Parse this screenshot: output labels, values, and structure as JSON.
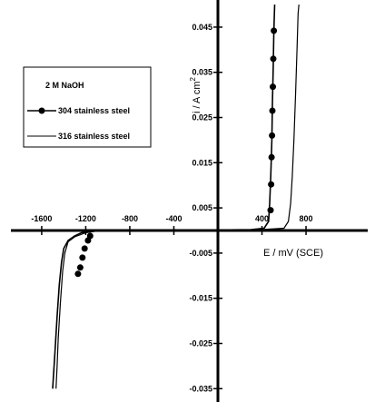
{
  "chart_data": {
    "type": "line",
    "title": "",
    "xlabel": "E / mV (SCE)",
    "ylabel": "i / A cm",
    "ylabel_sup": "2",
    "xlim": [
      -1800,
      1300
    ],
    "ylim": [
      -0.0365,
      0.05
    ],
    "x_ticks": [
      -1600,
      -1200,
      -800,
      -400,
      400,
      800
    ],
    "x_tick_labels": [
      "-1600",
      "-1200",
      "-800",
      "-400",
      "400",
      "800"
    ],
    "y_ticks": [
      0.045,
      0.035,
      0.025,
      0.015,
      0.005,
      -0.005,
      -0.015,
      -0.025,
      -0.035
    ],
    "y_tick_labels": [
      "0.045",
      "0.035",
      "0.025",
      "0.015",
      "0.005",
      "-0.005",
      "-0.015",
      "-0.025",
      "-0.035"
    ],
    "grid": false,
    "legend": {
      "placement": "upper-left",
      "title": "2 M NaOH",
      "entries": [
        "304 stainless steel",
        "316 stainless steel"
      ]
    },
    "series": [
      {
        "name": "304 stainless steel",
        "marker": "circle",
        "color": "#000000",
        "points": [
          [
            -1500,
            -0.035
          ],
          [
            -1480,
            -0.027
          ],
          [
            -1460,
            -0.019
          ],
          [
            -1440,
            -0.012
          ],
          [
            -1420,
            -0.007
          ],
          [
            -1400,
            -0.004
          ],
          [
            -1360,
            -0.0022
          ],
          [
            -1300,
            -0.0012
          ],
          [
            -1240,
            -0.0005
          ],
          [
            -1100,
            -0.0001
          ],
          [
            0,
            0.0001
          ],
          [
            300,
            0.0002
          ],
          [
            420,
            0.0005
          ],
          [
            460,
            0.002
          ],
          [
            470,
            0.006
          ],
          [
            480,
            0.012
          ],
          [
            490,
            0.02
          ],
          [
            495,
            0.028
          ],
          [
            502,
            0.036
          ],
          [
            508,
            0.044
          ],
          [
            515,
            0.05
          ]
        ],
        "marker_points": [
          [
            -1270,
            -0.0096
          ],
          [
            -1250,
            -0.0082
          ],
          [
            -1230,
            -0.006
          ],
          [
            -1210,
            -0.004
          ],
          [
            -1180,
            -0.0022
          ],
          [
            -1160,
            -0.0012
          ],
          [
            478,
            0.0045
          ],
          [
            483,
            0.0102
          ],
          [
            487,
            0.0162
          ],
          [
            491,
            0.021
          ],
          [
            495,
            0.0265
          ],
          [
            499,
            0.0318
          ],
          [
            503,
            0.038
          ],
          [
            508,
            0.0442
          ]
        ]
      },
      {
        "name": "316 stainless steel",
        "marker": "none",
        "color": "#000000",
        "points": [
          [
            -1470,
            -0.035
          ],
          [
            -1460,
            -0.03
          ],
          [
            -1450,
            -0.024
          ],
          [
            -1430,
            -0.016
          ],
          [
            -1410,
            -0.009
          ],
          [
            -1390,
            -0.005
          ],
          [
            -1360,
            -0.0025
          ],
          [
            -1300,
            -0.0014
          ],
          [
            -1200,
            -0.0005
          ],
          [
            -1100,
            -0.0001
          ],
          [
            0,
            0.0001
          ],
          [
            400,
            0.0002
          ],
          [
            600,
            0.0005
          ],
          [
            640,
            0.002
          ],
          [
            660,
            0.006
          ],
          [
            675,
            0.012
          ],
          [
            690,
            0.02
          ],
          [
            705,
            0.03
          ],
          [
            718,
            0.04
          ],
          [
            728,
            0.048
          ],
          [
            735,
            0.05
          ]
        ]
      }
    ]
  }
}
